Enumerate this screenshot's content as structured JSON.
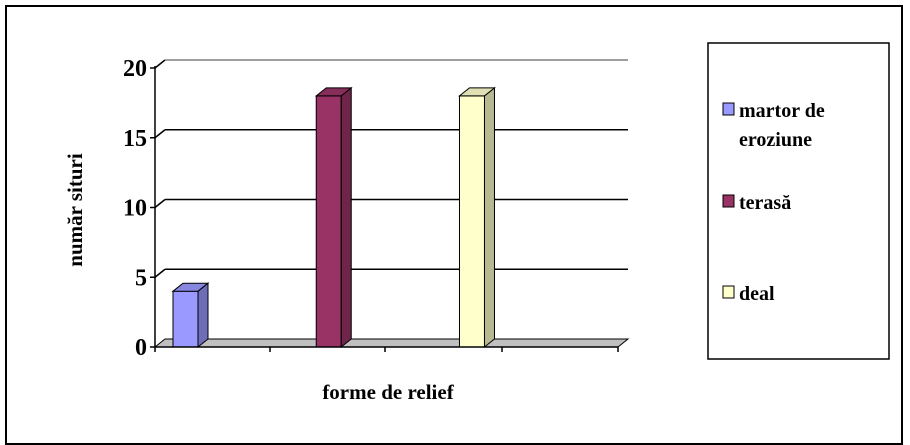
{
  "chart_data": {
    "type": "bar",
    "title": "",
    "xlabel": "forme de relief",
    "ylabel": "număr situri",
    "ylim": [
      0,
      20
    ],
    "yticks": [
      0,
      5,
      10,
      15,
      20
    ],
    "grid": true,
    "legend_position": "right",
    "series": [
      {
        "name": "martor de eroziune",
        "values": [
          4
        ],
        "color": "#9999ff"
      },
      {
        "name": "terasă",
        "values": [
          18
        ],
        "color": "#993366"
      },
      {
        "name": "deal",
        "values": [
          18
        ],
        "color": "#ffffcc"
      }
    ]
  }
}
